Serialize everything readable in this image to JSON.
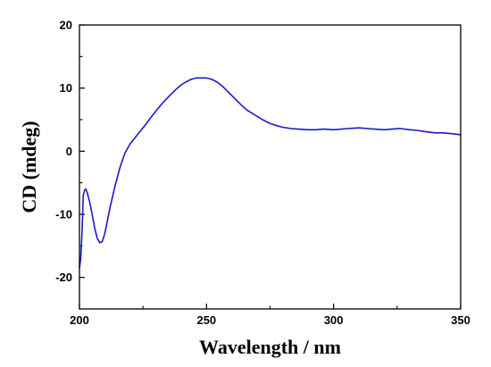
{
  "chart_data": {
    "type": "line",
    "xlabel": "Wavelength / nm",
    "ylabel": "CD (mdeg)",
    "xlim": [
      200,
      350
    ],
    "ylim": [
      -25,
      20
    ],
    "xticks": [
      200,
      250,
      300,
      350
    ],
    "yticks": [
      -20,
      -10,
      0,
      10,
      20
    ],
    "xtick_labels": [
      "200",
      "250",
      "300",
      "350"
    ],
    "ytick_labels": [
      "-20",
      "-10",
      "0",
      "10",
      "20"
    ],
    "grid": false,
    "legend": "none",
    "colors": {
      "series": "#1a1acc",
      "axes": "#000000"
    },
    "series": [
      {
        "x": [
          200.0,
          200.5,
          201.0,
          201.5,
          202.0,
          202.5,
          203.0,
          204.0,
          205.0,
          206.0,
          207.0,
          208.0,
          209.0,
          210.0,
          212.0,
          214.0,
          216.0,
          218.0,
          220.0,
          222.0,
          224.0,
          226.0,
          228.0,
          230.0,
          232.0,
          234.0,
          236.0,
          238.0,
          240.0,
          242.0,
          244.0,
          246.0,
          248.0,
          250.0,
          252.0,
          254.0,
          256.0,
          258.0,
          260.0,
          262.0,
          264.0,
          266.0,
          268.0,
          270.0,
          272.0,
          275.0,
          278.0,
          280.0,
          283.0,
          286.0,
          290.0,
          293.0,
          296.0,
          300.0,
          303.0,
          306.0,
          310.0,
          313.0,
          316.0,
          320.0,
          323.0,
          326.0,
          330.0,
          333.0,
          336.0,
          340.0,
          343.0,
          346.0,
          350.0
        ],
        "values": [
          -18.5,
          -17.0,
          -13.0,
          -7.0,
          -6.2,
          -6.0,
          -6.5,
          -8.0,
          -10.0,
          -12.2,
          -13.8,
          -14.5,
          -14.3,
          -13.0,
          -9.0,
          -5.5,
          -2.5,
          -0.2,
          1.2,
          2.2,
          3.2,
          4.2,
          5.3,
          6.3,
          7.3,
          8.2,
          9.0,
          9.8,
          10.5,
          11.0,
          11.4,
          11.6,
          11.6,
          11.6,
          11.4,
          11.0,
          10.4,
          9.6,
          8.8,
          8.0,
          7.2,
          6.5,
          6.0,
          5.5,
          5.0,
          4.4,
          4.0,
          3.8,
          3.6,
          3.5,
          3.4,
          3.4,
          3.5,
          3.4,
          3.5,
          3.6,
          3.7,
          3.6,
          3.5,
          3.4,
          3.5,
          3.6,
          3.4,
          3.3,
          3.1,
          2.9,
          2.9,
          2.8,
          2.6
        ]
      }
    ]
  }
}
